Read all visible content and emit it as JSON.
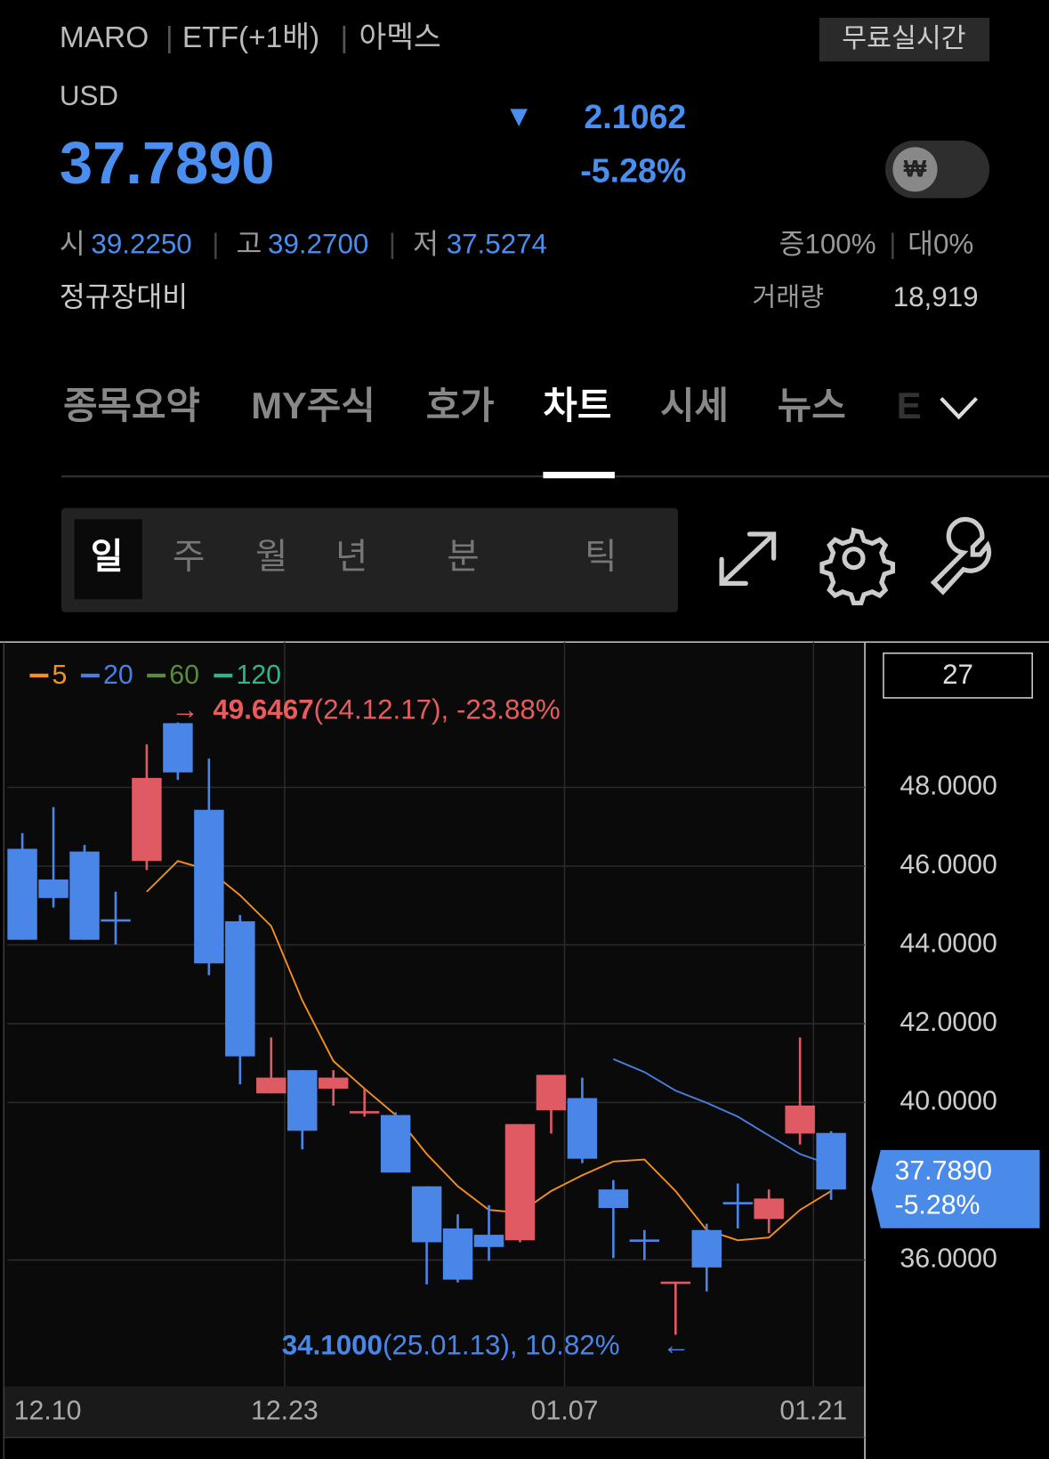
{
  "header": {
    "symbol": "MARO",
    "fund_type": "ETF(+1배)",
    "exchange": "아멕스",
    "realtime_button": "무료실시간",
    "currency": "USD",
    "price": "37.7890",
    "change": "2.1062",
    "change_pct": "-5.28%",
    "toggle": "₩",
    "open_label": "시",
    "open": "39.2250",
    "high_label": "고",
    "high": "39.2700",
    "low_label": "저",
    "low": "37.5274",
    "margin": "증100%",
    "loan": "대0%",
    "session": "정규장대비",
    "volume_label": "거래량",
    "volume": "18,919"
  },
  "tabs": [
    "종목요약",
    "MY주식",
    "호가",
    "차트",
    "시세",
    "뉴스",
    "E"
  ],
  "periods": [
    "일",
    "주",
    "월",
    "년",
    "분",
    "틱"
  ],
  "chart_data": {
    "type": "candlestick",
    "count_box": "27",
    "categories": [
      "12.10",
      null,
      null,
      null,
      null,
      null,
      null,
      null,
      null,
      "12.23",
      null,
      null,
      null,
      null,
      null,
      null,
      null,
      null,
      "01.07",
      null,
      null,
      null,
      null,
      null,
      null,
      null,
      "01.21"
    ],
    "open": [
      46.44,
      45.66,
      46.37,
      44.65,
      46.13,
      49.63,
      47.43,
      44.6,
      40.23,
      40.82,
      40.35,
      39.73,
      39.68,
      37.87,
      36.8,
      36.64,
      36.5,
      39.8,
      40.11,
      37.79,
      36.52,
      35.43,
      36.76,
      37.47,
      37.04,
      39.21,
      39.225
    ],
    "high": [
      46.84,
      47.5,
      46.54,
      45.35,
      49.09,
      49.6467,
      48.73,
      44.76,
      41.65,
      40.82,
      40.82,
      40.35,
      39.75,
      37.87,
      37.16,
      37.39,
      39.45,
      40.7,
      40.63,
      38.03,
      36.76,
      35.45,
      36.92,
      37.94,
      37.79,
      41.65,
      39.27
    ],
    "low": [
      44.13,
      44.95,
      44.13,
      44.01,
      45.9,
      48.19,
      43.23,
      40.46,
      40.23,
      38.81,
      39.92,
      39.64,
      38.22,
      35.38,
      35.43,
      35.98,
      36.45,
      39.21,
      38.46,
      36.05,
      36.0,
      34.1,
      35.2,
      36.8,
      36.68,
      38.93,
      37.5274
    ],
    "close": [
      44.13,
      45.19,
      44.13,
      44.6,
      48.24,
      48.38,
      43.53,
      41.17,
      40.63,
      39.28,
      40.63,
      39.78,
      38.22,
      36.45,
      35.5,
      36.33,
      39.45,
      40.7,
      38.57,
      37.32,
      36.5,
      35.45,
      35.81,
      37.44,
      37.56,
      39.92,
      37.789
    ],
    "up_color": "#e05a64",
    "down_color": "#4a86e8",
    "series": [
      {
        "name": "5",
        "color": "#f5901e",
        "values": [
          null,
          null,
          null,
          null,
          45.35,
          46.13,
          45.9,
          45.26,
          44.48,
          42.59,
          41.05,
          40.35,
          39.68,
          38.69,
          37.87,
          37.27,
          37.2,
          37.75,
          38.15,
          38.5,
          38.55,
          37.75,
          36.76,
          36.5,
          36.57,
          37.27,
          37.75
        ]
      },
      {
        "name": "20",
        "color": "#4a7fe0",
        "values": [
          null,
          null,
          null,
          null,
          null,
          null,
          null,
          null,
          null,
          null,
          null,
          null,
          null,
          null,
          null,
          null,
          null,
          null,
          null,
          41.1,
          40.77,
          40.3,
          39.99,
          39.64,
          39.16,
          38.69,
          38.41
        ]
      },
      {
        "name": "60",
        "color": "#5a8a3a",
        "values": [
          null,
          null,
          null,
          null,
          null,
          null,
          null,
          null,
          null,
          null,
          null,
          null,
          null,
          null,
          null,
          null,
          null,
          null,
          null,
          null,
          null,
          null,
          null,
          null,
          null,
          null,
          null
        ]
      },
      {
        "name": "120",
        "color": "#2fb58a",
        "values": [
          null,
          null,
          null,
          null,
          null,
          null,
          null,
          null,
          null,
          null,
          null,
          null,
          null,
          null,
          null,
          null,
          null,
          null,
          null,
          null,
          null,
          null,
          null,
          null,
          null,
          null,
          null
        ]
      }
    ],
    "ylim": [
      32.79,
      51.69
    ],
    "yticks": [
      {
        "value": 36,
        "label": "36.0000"
      },
      {
        "value": 40,
        "label": "40.0000"
      },
      {
        "value": 42,
        "label": "42.0000"
      },
      {
        "value": 44,
        "label": "44.0000"
      },
      {
        "value": 46,
        "label": "46.0000"
      },
      {
        "value": 48,
        "label": "48.0000"
      }
    ],
    "grid": true,
    "max_note": {
      "arrow": "→",
      "value": "49.6467",
      "detail": "(24.12.17), -23.88%"
    },
    "min_note": {
      "value": "34.1000",
      "detail": "(25.01.13), 10.82%",
      "arrow": "←"
    },
    "last_price": {
      "value": "37.7890",
      "pct": "-5.28%"
    }
  }
}
